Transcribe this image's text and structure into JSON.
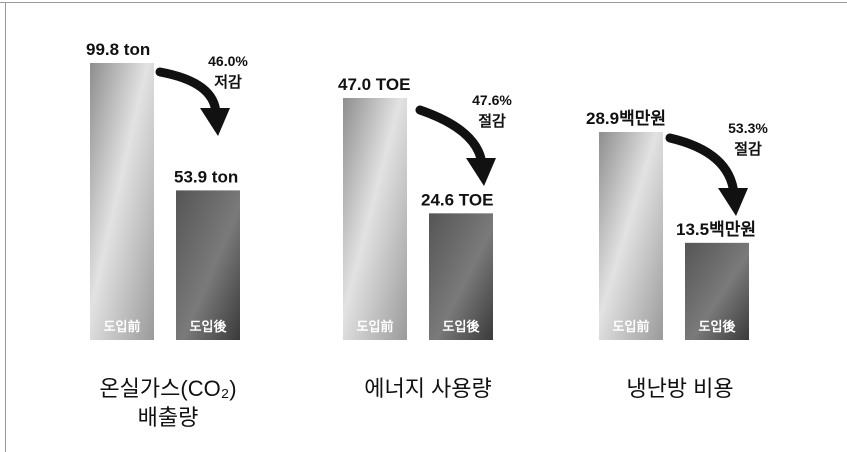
{
  "chart_data": [
    {
      "type": "bar",
      "title": "온실가스(CO₂) 배출량",
      "title_lines": [
        "온실가스(CO₂)",
        "배출량"
      ],
      "categories": [
        "도입前",
        "도입後"
      ],
      "values": [
        99.8,
        53.9
      ],
      "value_labels": [
        "99.8  ton",
        "53.9  ton"
      ],
      "ylim": [
        0,
        105
      ],
      "reduction": [
        "46.0%",
        "저감"
      ]
    },
    {
      "type": "bar",
      "title": "에너지 사용량",
      "title_lines": [
        "에너지  사용량"
      ],
      "categories": [
        "도입前",
        "도입後"
      ],
      "values": [
        47.0,
        24.6
      ],
      "value_labels": [
        "47.0  TOE",
        "24.6  TOE"
      ],
      "ylim": [
        0,
        50
      ],
      "reduction": [
        "47.6%",
        "절감"
      ]
    },
    {
      "type": "bar",
      "title": "냉난방 비용",
      "title_lines": [
        "냉난방  비용"
      ],
      "categories": [
        "도입前",
        "도입後"
      ],
      "values": [
        28.9,
        13.5
      ],
      "value_labels": [
        "28.9백만원",
        "13.5백만원"
      ],
      "ylim": [
        0,
        31
      ],
      "reduction": [
        "53.3%",
        "절감"
      ]
    }
  ],
  "colors": {
    "bar_before_light": "#e6e6e6",
    "bar_before_dark": "#8a8a8a",
    "bar_after_light": "#808080",
    "bar_after_dark": "#2e2e2e",
    "arrow": "#111111",
    "text": "#111111"
  }
}
